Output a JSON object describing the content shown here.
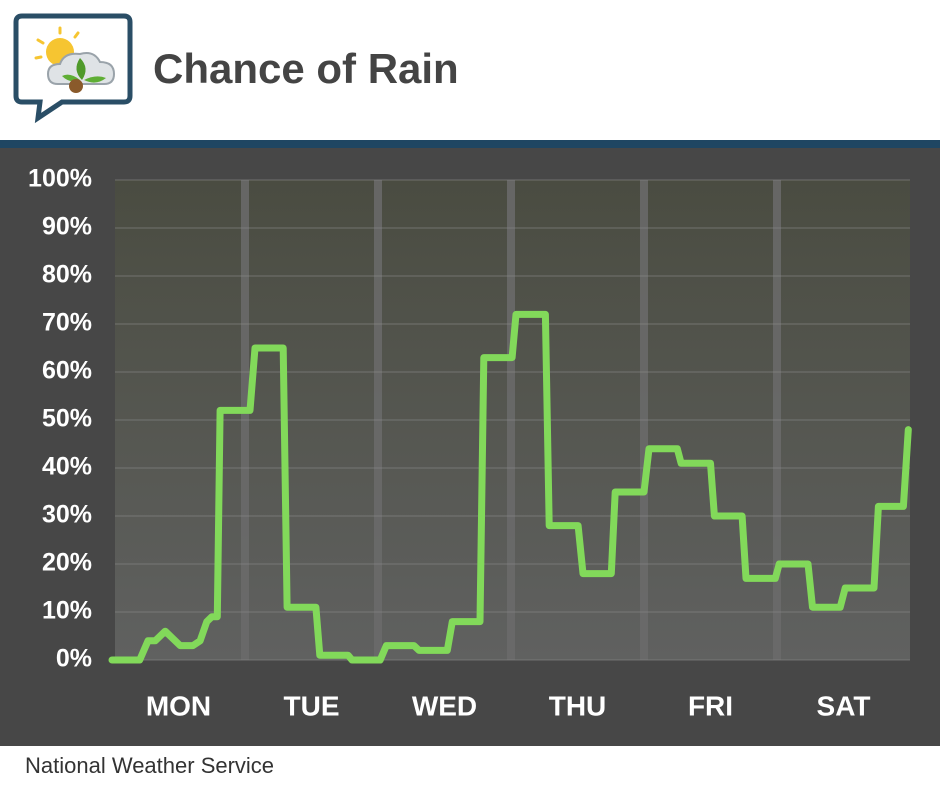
{
  "chart_data": {
    "type": "line",
    "title": "Chance of Rain",
    "source": "National Weather Service",
    "color": "#82d95a",
    "x": [
      0,
      5,
      6.5,
      7.8,
      9.6,
      12.3,
      14.6,
      15.9,
      17.1,
      18,
      19,
      19.5,
      24.9,
      25.8,
      30.9,
      31.6,
      36.8,
      37.5,
      42.6,
      43.3,
      48.4,
      49.5,
      54.5,
      55.4,
      60.5,
      61.4,
      66.4,
      67.1,
      72.2,
      72.9,
      78.2,
      78.9,
      84.1,
      85,
      90.1,
      90.8,
      96,
      96.9,
      102,
      102.7,
      108,
      108.7,
      113.7,
      114.4,
      119.7,
      120.4,
      125.6,
      126.4,
      131.4,
      132.3,
      137.5,
      138.3,
      142.8,
      143.7
    ],
    "values": [
      0,
      0,
      4,
      4,
      6,
      3,
      3,
      4,
      8,
      9,
      9,
      52,
      52,
      65,
      65,
      11,
      11,
      1,
      1,
      0,
      0,
      3,
      3,
      2,
      2,
      8,
      8,
      63,
      63,
      72,
      72,
      28,
      28,
      18,
      18,
      35,
      35,
      44,
      44,
      41,
      41,
      30,
      30,
      17,
      17,
      20,
      20,
      11,
      11,
      15,
      15,
      32,
      32,
      48
    ],
    "xlim": [
      0,
      144
    ],
    "xticks": [
      {
        "value": 12,
        "label": "MON"
      },
      {
        "value": 36,
        "label": "TUE"
      },
      {
        "value": 60,
        "label": "WED"
      },
      {
        "value": 84,
        "label": "THU"
      },
      {
        "value": 108,
        "label": "FRI"
      },
      {
        "value": 132,
        "label": "SAT"
      }
    ],
    "ylim": [
      0,
      100
    ],
    "yticks": [
      {
        "value": 0,
        "label": "0%"
      },
      {
        "value": 10,
        "label": "10%"
      },
      {
        "value": 20,
        "label": "20%"
      },
      {
        "value": 30,
        "label": "30%"
      },
      {
        "value": 40,
        "label": "40%"
      },
      {
        "value": 50,
        "label": "50%"
      },
      {
        "value": 60,
        "label": "60%"
      },
      {
        "value": 70,
        "label": "70%"
      },
      {
        "value": 80,
        "label": "80%"
      },
      {
        "value": 90,
        "label": "90%"
      },
      {
        "value": 100,
        "label": "100%"
      }
    ],
    "grid": true
  }
}
